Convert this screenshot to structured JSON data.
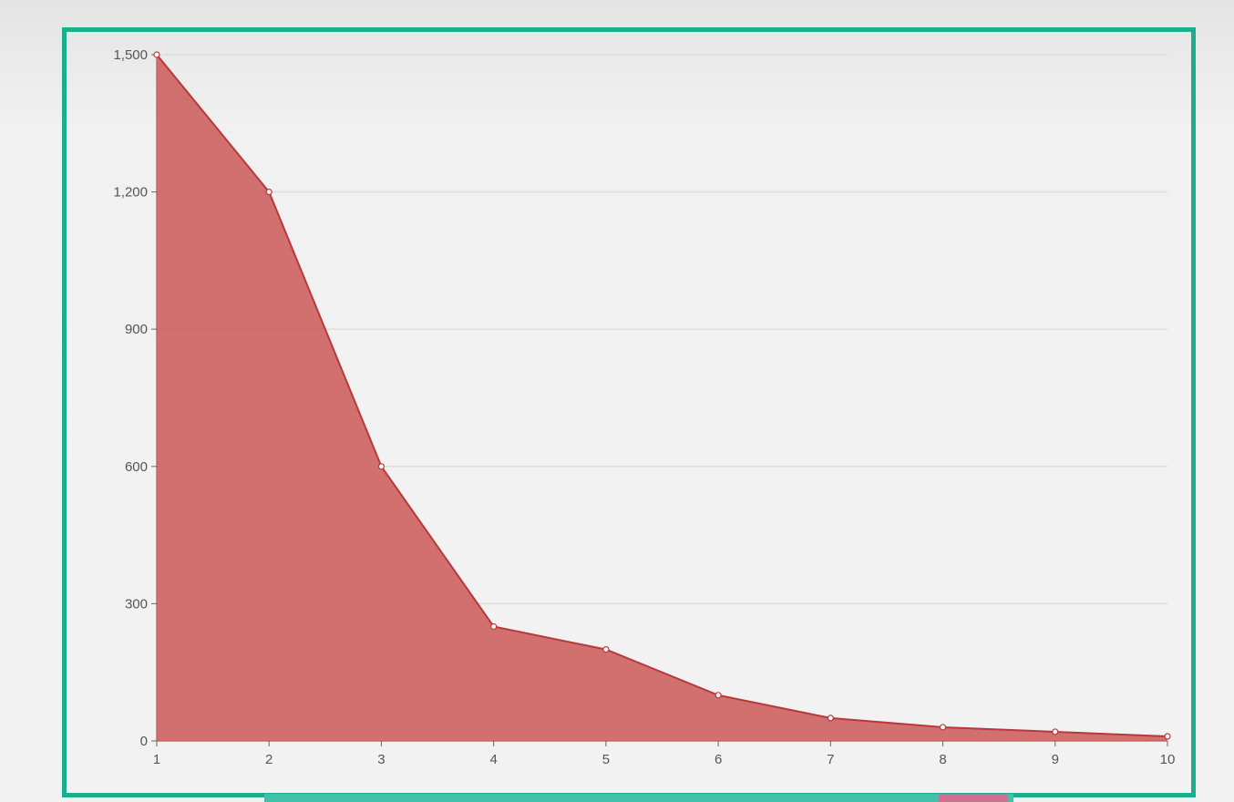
{
  "chart_data": {
    "type": "area",
    "title": "",
    "xlabel": "",
    "ylabel": "",
    "x": [
      1,
      2,
      3,
      4,
      5,
      6,
      7,
      8,
      9,
      10
    ],
    "x_tick_labels": [
      "1",
      "2",
      "3",
      "4",
      "5",
      "6",
      "7",
      "8",
      "9",
      "10"
    ],
    "series": [
      {
        "values": [
          1500,
          1200,
          600,
          250,
          200,
          100,
          50,
          30,
          20,
          10
        ]
      }
    ],
    "ylim": [
      0,
      1500
    ],
    "y_ticks": [
      0,
      300,
      600,
      900,
      1200,
      1500
    ],
    "y_tick_labels": [
      "0",
      "300",
      "600",
      "900",
      "1,200",
      "1,500"
    ],
    "grid": "horizontal",
    "colors": {
      "area_fill": "#cd5c5c",
      "line": "#b8383b",
      "frame_border": "#1aae8f",
      "grid": "#dddddd"
    }
  }
}
